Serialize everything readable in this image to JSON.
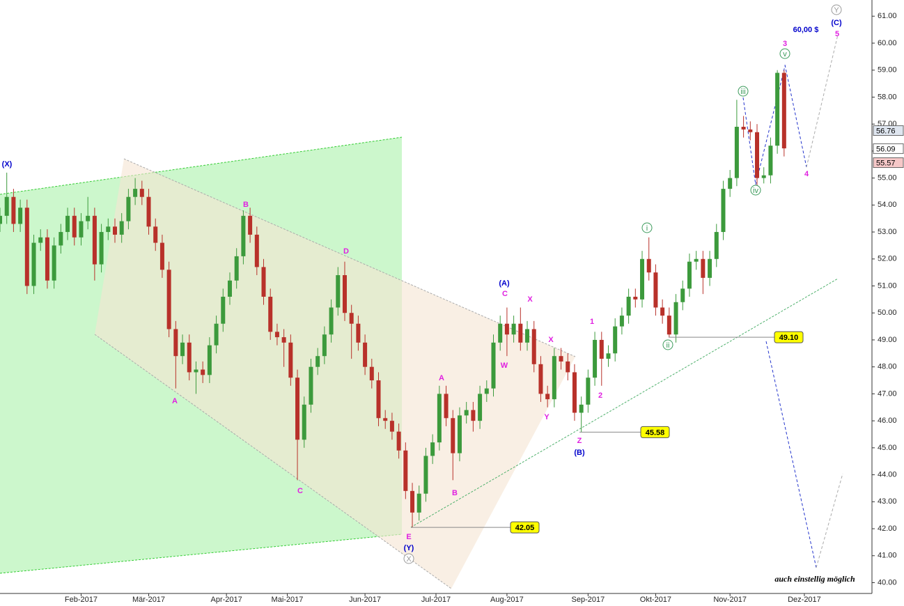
{
  "chart_data": {
    "type": "candlestick",
    "x": [
      0,
      2,
      4,
      6,
      8,
      10,
      12,
      14,
      16,
      18,
      20,
      22,
      24,
      26,
      28,
      30,
      32,
      34,
      36,
      38,
      40,
      42,
      44,
      46,
      48,
      50,
      52,
      54,
      56,
      58,
      60,
      62,
      64,
      66,
      68,
      70,
      72,
      74,
      76,
      78,
      80,
      82,
      84,
      86,
      88,
      90,
      92,
      94,
      96,
      98,
      100,
      102,
      104,
      106,
      108,
      110,
      112,
      114,
      116,
      118,
      120,
      122,
      124,
      126,
      128,
      130,
      132,
      134,
      136,
      138,
      140,
      142,
      144,
      146,
      148,
      150,
      152,
      154,
      156,
      158,
      160,
      162,
      164,
      166,
      168,
      170,
      172,
      174,
      176,
      178,
      180,
      182,
      184,
      186,
      188,
      190,
      192,
      194,
      196,
      198,
      200,
      202,
      204,
      206,
      208,
      210,
      212,
      214,
      216,
      218,
      220,
      222,
      224,
      226,
      228,
      230,
      232
    ],
    "open": [
      53.3,
      53.6,
      54.3,
      53.3,
      53.9,
      51.0,
      52.6,
      52.8,
      51.2,
      52.5,
      53.0,
      53.6,
      52.8,
      53.4,
      53.6,
      51.8,
      53.0,
      53.2,
      52.9,
      53.4,
      54.3,
      54.6,
      54.3,
      53.2,
      52.6,
      51.6,
      49.4,
      48.4,
      48.9,
      47.8,
      47.9,
      47.7,
      48.8,
      49.6,
      50.6,
      51.2,
      52.1,
      53.6,
      52.9,
      51.7,
      50.6,
      49.3,
      49.1,
      48.9,
      47.6,
      45.3,
      46.6,
      48.0,
      48.4,
      49.2,
      50.2,
      51.4,
      50.0,
      49.6,
      48.9,
      48.0,
      47.5,
      46.1,
      46.0,
      45.6,
      44.9,
      43.4,
      42.6,
      43.3,
      44.7,
      45.2,
      47.0,
      46.1,
      44.8,
      46.2,
      46.4,
      46.0,
      47.0,
      47.2,
      48.9,
      49.6,
      49.2,
      49.6,
      48.9,
      49.4,
      48.1,
      47.0,
      46.8,
      48.4,
      48.2,
      47.8,
      46.3,
      46.6,
      47.6,
      49.0,
      48.3,
      48.5,
      49.5,
      49.9,
      50.6,
      50.5,
      52.0,
      51.5,
      50.2,
      49.9,
      49.2,
      50.4,
      50.9,
      51.9,
      52.0,
      51.3,
      52.0,
      53.0,
      54.6,
      55.0,
      56.9,
      56.8,
      56.7,
      55.0,
      55.1,
      56.2,
      58.9
    ],
    "high": [
      53.9,
      55.2,
      54.6,
      54.2,
      54.2,
      52.9,
      53.1,
      53.1,
      52.8,
      53.3,
      53.9,
      53.9,
      53.7,
      54.3,
      53.9,
      53.3,
      53.5,
      53.5,
      53.7,
      54.6,
      55.0,
      54.9,
      54.6,
      53.5,
      52.9,
      51.9,
      49.7,
      49.2,
      49.2,
      48.2,
      48.2,
      49.1,
      49.9,
      50.9,
      51.5,
      52.4,
      53.8,
      53.9,
      53.2,
      52.0,
      50.9,
      49.6,
      49.4,
      49.2,
      47.9,
      46.9,
      48.3,
      48.7,
      49.5,
      50.5,
      51.7,
      51.9,
      50.3,
      49.9,
      49.2,
      48.3,
      47.8,
      46.4,
      46.3,
      45.9,
      45.2,
      43.7,
      43.6,
      45.0,
      45.5,
      47.3,
      47.3,
      46.4,
      46.5,
      46.7,
      46.7,
      47.3,
      47.5,
      49.2,
      49.9,
      50.2,
      49.9,
      50.2,
      49.7,
      49.7,
      48.4,
      47.3,
      48.7,
      48.7,
      48.5,
      48.1,
      46.9,
      47.9,
      49.3,
      49.3,
      48.8,
      49.8,
      50.2,
      50.9,
      50.9,
      52.3,
      52.8,
      51.8,
      50.5,
      50.2,
      50.7,
      51.2,
      52.2,
      52.3,
      52.3,
      52.3,
      53.3,
      54.9,
      55.3,
      57.9,
      57.3,
      57.1,
      57.0,
      55.4,
      56.5,
      59.0,
      59.0
    ],
    "low": [
      53.0,
      53.3,
      53.0,
      53.0,
      50.7,
      50.7,
      52.3,
      50.9,
      50.9,
      52.2,
      52.7,
      52.5,
      52.5,
      53.1,
      51.2,
      51.5,
      52.7,
      52.6,
      52.6,
      53.1,
      54.0,
      54.0,
      52.9,
      52.3,
      51.3,
      49.1,
      47.2,
      48.1,
      47.5,
      47.0,
      47.4,
      47.4,
      48.5,
      49.3,
      50.3,
      50.9,
      51.8,
      52.6,
      51.4,
      50.3,
      49.0,
      48.8,
      48.0,
      47.3,
      43.8,
      45.0,
      46.3,
      47.7,
      48.1,
      48.9,
      49.9,
      49.7,
      48.3,
      48.6,
      47.7,
      47.2,
      45.8,
      45.7,
      45.3,
      44.6,
      43.1,
      42.05,
      42.3,
      43.0,
      44.4,
      44.9,
      45.8,
      43.8,
      44.5,
      45.9,
      45.6,
      45.7,
      46.7,
      46.9,
      48.6,
      48.4,
      48.9,
      48.6,
      48.6,
      47.8,
      46.7,
      46.5,
      46.5,
      47.9,
      47.5,
      46.0,
      45.58,
      46.3,
      47.3,
      47.3,
      48.0,
      48.2,
      49.2,
      49.6,
      50.2,
      50.2,
      51.2,
      49.9,
      49.6,
      49.1,
      48.9,
      50.1,
      50.6,
      51.6,
      50.7,
      51.0,
      51.7,
      52.7,
      54.3,
      54.7,
      56.5,
      56.4,
      54.7,
      54.8,
      54.8,
      55.9,
      55.8
    ],
    "close": [
      53.6,
      54.3,
      53.3,
      53.9,
      51.0,
      52.6,
      52.8,
      51.2,
      52.5,
      53.0,
      53.6,
      52.8,
      53.4,
      53.6,
      51.8,
      53.0,
      53.2,
      52.9,
      53.4,
      54.3,
      54.6,
      54.3,
      53.2,
      52.6,
      51.6,
      49.4,
      48.4,
      48.9,
      47.8,
      47.9,
      47.7,
      48.8,
      49.6,
      50.6,
      51.2,
      52.1,
      53.6,
      52.9,
      51.7,
      50.6,
      49.3,
      49.1,
      48.9,
      47.6,
      45.3,
      46.6,
      48.0,
      48.4,
      49.2,
      50.2,
      51.4,
      50.0,
      49.6,
      48.9,
      48.0,
      47.5,
      46.1,
      46.0,
      45.6,
      44.9,
      43.4,
      42.6,
      43.3,
      44.7,
      45.2,
      47.0,
      46.1,
      44.8,
      46.2,
      46.4,
      46.0,
      47.0,
      47.2,
      48.9,
      49.6,
      49.2,
      49.6,
      48.9,
      49.4,
      48.1,
      47.0,
      46.8,
      48.4,
      48.2,
      47.8,
      46.3,
      46.6,
      47.6,
      49.0,
      48.3,
      48.5,
      49.5,
      49.9,
      50.6,
      50.5,
      52.0,
      51.5,
      50.2,
      49.9,
      49.2,
      50.4,
      50.9,
      51.9,
      52.0,
      51.3,
      52.0,
      53.0,
      54.6,
      55.0,
      56.9,
      56.8,
      56.7,
      55.0,
      55.1,
      56.2,
      58.9,
      56.1
    ],
    "up_color": "#3c9a3c",
    "down_color": "#b8312a",
    "xlim": [
      0,
      258
    ],
    "xticks": [
      {
        "value": 24,
        "label": "Feb-2017"
      },
      {
        "value": 44,
        "label": "Mär-2017"
      },
      {
        "value": 67,
        "label": "Apr-2017"
      },
      {
        "value": 85,
        "label": "Mai-2017"
      },
      {
        "value": 108,
        "label": "Jun-2017"
      },
      {
        "value": 129,
        "label": "Jul-2017"
      },
      {
        "value": 150,
        "label": "Aug-2017"
      },
      {
        "value": 174,
        "label": "Sep-2017"
      },
      {
        "value": 194,
        "label": "Okt-2017"
      },
      {
        "value": 216,
        "label": "Nov-2017"
      },
      {
        "value": 238,
        "label": "Dez-2017"
      }
    ],
    "ylim": [
      39.6,
      61.6
    ],
    "yticks": [
      {
        "value": 40,
        "label": "40.00"
      },
      {
        "value": 41,
        "label": "41.00"
      },
      {
        "value": 42,
        "label": "42.00"
      },
      {
        "value": 43,
        "label": "43.00"
      },
      {
        "value": 44,
        "label": "44.00"
      },
      {
        "value": 45,
        "label": "45.00"
      },
      {
        "value": 46,
        "label": "46.00"
      },
      {
        "value": 47,
        "label": "47.00"
      },
      {
        "value": 48,
        "label": "48.00"
      },
      {
        "value": 49,
        "label": "49.00"
      },
      {
        "value": 50,
        "label": "50.00"
      },
      {
        "value": 51,
        "label": "51.00"
      },
      {
        "value": 52,
        "label": "52.00"
      },
      {
        "value": 53,
        "label": "53.00"
      },
      {
        "value": 54,
        "label": "54.00"
      },
      {
        "value": 55,
        "label": "55.00"
      },
      {
        "value": 56,
        "label": "56.00"
      },
      {
        "value": 57,
        "label": "57.00"
      },
      {
        "value": 58,
        "label": "58.00"
      },
      {
        "value": 59,
        "label": "59.00"
      },
      {
        "value": 60,
        "label": "60.00"
      },
      {
        "value": 61,
        "label": "61.00"
      }
    ],
    "levels": [
      {
        "value": 42.05,
        "label": "42.05"
      },
      {
        "value": 45.58,
        "label": "45.58"
      },
      {
        "value": 49.1,
        "label": "49.10"
      }
    ],
    "price_markers": [
      {
        "value": 56.76,
        "label": "56.76",
        "color": "#dfe6f0"
      },
      {
        "value": 56.09,
        "label": "56.09",
        "color": "#ffffff"
      },
      {
        "value": 55.57,
        "label": "55.57",
        "color": "#f6c8c8"
      }
    ],
    "annotations": [
      {
        "text": "(X)",
        "color": "#0000cc"
      },
      {
        "text": "B",
        "color": "#e020e0"
      },
      {
        "text": "A",
        "color": "#e020e0"
      },
      {
        "text": "D",
        "color": "#e020e0"
      },
      {
        "text": "C",
        "color": "#e020e0"
      },
      {
        "text": "E",
        "color": "#e020e0"
      },
      {
        "text": "(Y)",
        "color": "#0000cc"
      },
      {
        "text": "X",
        "color": "#999999",
        "circled": true
      },
      {
        "text": "A",
        "color": "#e020e0"
      },
      {
        "text": "B",
        "color": "#e020e0"
      },
      {
        "text": "(A)",
        "color": "#0000cc"
      },
      {
        "text": "C",
        "color": "#e020e0"
      },
      {
        "text": "X",
        "color": "#e020e0"
      },
      {
        "text": "W",
        "color": "#e020e0"
      },
      {
        "text": "X",
        "color": "#e020e0"
      },
      {
        "text": "Y",
        "color": "#e020e0"
      },
      {
        "text": "Z",
        "color": "#e020e0"
      },
      {
        "text": "(B)",
        "color": "#0000cc"
      },
      {
        "text": "1",
        "color": "#e020e0"
      },
      {
        "text": "2",
        "color": "#e020e0"
      },
      {
        "text": "i",
        "color": "#3a9a5a",
        "circled": true
      },
      {
        "text": "ii",
        "color": "#3a9a5a",
        "circled": true
      },
      {
        "text": "iii",
        "color": "#3a9a5a",
        "circled": true
      },
      {
        "text": "iv",
        "color": "#3a9a5a",
        "circled": true
      },
      {
        "text": "v",
        "color": "#3a9a5a",
        "circled": true
      },
      {
        "text": "3",
        "color": "#e020e0"
      },
      {
        "text": "4",
        "color": "#e020e0"
      },
      {
        "text": "5",
        "color": "#e020e0"
      },
      {
        "text": "(C)",
        "color": "#0000cc"
      },
      {
        "text": "Y",
        "color": "#999999",
        "circled": true
      },
      {
        "text": "60,00 $",
        "color": "#0000cc"
      }
    ],
    "note": "auch einstellig möglich"
  }
}
